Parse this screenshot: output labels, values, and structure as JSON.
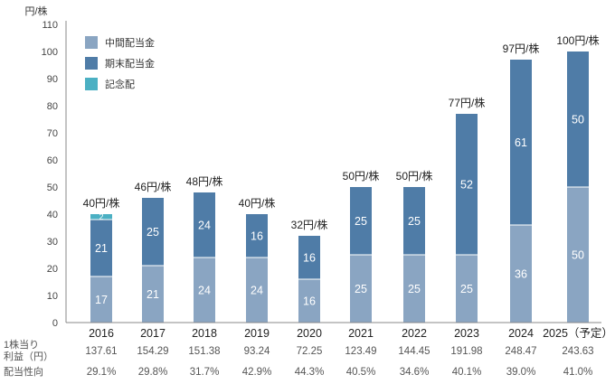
{
  "chart_data": {
    "type": "bar",
    "stacked": true,
    "y_unit": "円/株",
    "ylim": [
      0,
      110
    ],
    "y_ticks": [
      0,
      10,
      20,
      30,
      40,
      50,
      60,
      70,
      80,
      90,
      100,
      110
    ],
    "categories": [
      "2016",
      "2017",
      "2018",
      "2019",
      "2020",
      "2021",
      "2022",
      "2023",
      "2024",
      "2025（予定）"
    ],
    "series": [
      {
        "name": "中間配当金",
        "color": "#8aa5c2",
        "values": [
          17,
          21,
          24,
          24,
          16,
          25,
          25,
          25,
          36,
          50
        ]
      },
      {
        "name": "期末配当金",
        "color": "#4f7ca7",
        "values": [
          21,
          25,
          24,
          16,
          16,
          25,
          25,
          52,
          61,
          50
        ]
      },
      {
        "name": "記念配",
        "color": "#4bb0c3",
        "values": [
          2,
          0,
          0,
          0,
          0,
          0,
          0,
          0,
          0,
          0
        ]
      }
    ],
    "totals": [
      "40円/株",
      "46円/株",
      "48円/株",
      "40円/株",
      "32円/株",
      "50円/株",
      "50円/株",
      "77円/株",
      "97円/株",
      "100円/株"
    ],
    "legend_position": "top-left",
    "grid": false
  },
  "table": {
    "eps_label_line1": "1株当り",
    "eps_label_line2": "利益（円）",
    "eps_values": [
      "137.61",
      "154.29",
      "151.38",
      "93.24",
      "72.25",
      "123.49",
      "144.45",
      "191.98",
      "248.47",
      "243.63"
    ],
    "payout_label": "配当性向",
    "payout_values": [
      "29.1%",
      "29.8%",
      "31.7%",
      "42.9%",
      "44.3%",
      "40.5%",
      "34.6%",
      "40.1%",
      "39.0%",
      "41.0%"
    ]
  }
}
